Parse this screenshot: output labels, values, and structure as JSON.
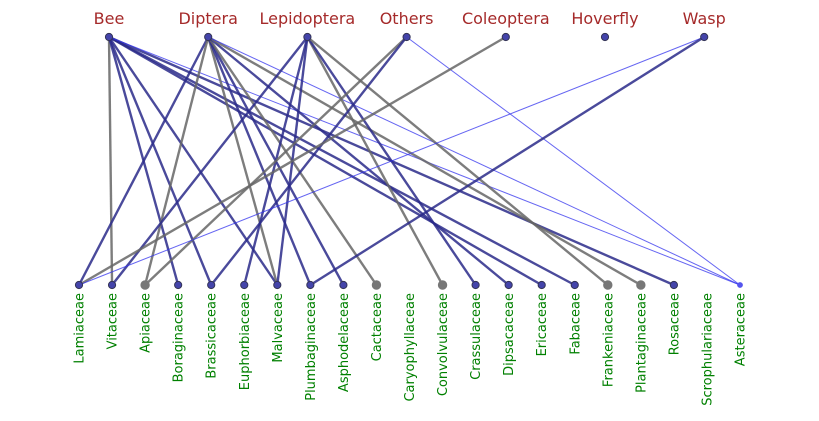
{
  "top_nodes": [
    "Bee",
    "Diptera",
    "Lepidoptera",
    "Others",
    "Coleoptera",
    "Hoverfly",
    "Wasp"
  ],
  "bottom_nodes": [
    "Lamiaceae",
    "Vitaceae",
    "Apiaceae",
    "Boraginaceae",
    "Brassicaceae",
    "Euphorbiaceae",
    "Malvaceae",
    "Plumbaginaceae",
    "Asphodelaceae",
    "Cactaceae",
    "Caryophyllaceae",
    "Convolvulaceae",
    "Crassulaceae",
    "Dipsacaceae",
    "Ericaceae",
    "Fabaceae",
    "Frankeniaceae",
    "Plantaginaceae",
    "Rosaceae",
    "Scrophulariaceae",
    "Asteraceae"
  ],
  "colors": {
    "top_label": "#a52a2a",
    "bottom_label": "#008000",
    "dark_blue": "#2a2a8a",
    "gray": "#666666",
    "light_blue": "#3333ee",
    "node_blue": "#4444aa",
    "node_gray": "#777777",
    "node_light": "#5555ee"
  },
  "edges": [
    {
      "from": "Bee",
      "to": "Vitaceae",
      "style": "gray"
    },
    {
      "from": "Bee",
      "to": "Boraginaceae",
      "style": "dark"
    },
    {
      "from": "Bee",
      "to": "Brassicaceae",
      "style": "dark"
    },
    {
      "from": "Bee",
      "to": "Malvaceae",
      "style": "dark"
    },
    {
      "from": "Bee",
      "to": "Ericaceae",
      "style": "dark"
    },
    {
      "from": "Bee",
      "to": "Fabaceae",
      "style": "dark"
    },
    {
      "from": "Bee",
      "to": "Rosaceae",
      "style": "dark"
    },
    {
      "from": "Bee",
      "to": "Asteraceae",
      "style": "light"
    },
    {
      "from": "Diptera",
      "to": "Lamiaceae",
      "style": "dark"
    },
    {
      "from": "Diptera",
      "to": "Apiaceae",
      "style": "gray"
    },
    {
      "from": "Diptera",
      "to": "Malvaceae",
      "style": "gray"
    },
    {
      "from": "Diptera",
      "to": "Plumbaginaceae",
      "style": "dark"
    },
    {
      "from": "Diptera",
      "to": "Asphodelaceae",
      "style": "dark"
    },
    {
      "from": "Diptera",
      "to": "Cactaceae",
      "style": "gray"
    },
    {
      "from": "Diptera",
      "to": "Dipsacaceae",
      "style": "dark"
    },
    {
      "from": "Diptera",
      "to": "Plantaginaceae",
      "style": "gray"
    },
    {
      "from": "Diptera",
      "to": "Asteraceae",
      "style": "light"
    },
    {
      "from": "Lepidoptera",
      "to": "Vitaceae",
      "style": "dark"
    },
    {
      "from": "Lepidoptera",
      "to": "Euphorbiaceae",
      "style": "dark"
    },
    {
      "from": "Lepidoptera",
      "to": "Malvaceae",
      "style": "dark"
    },
    {
      "from": "Lepidoptera",
      "to": "Convolvulaceae",
      "style": "gray"
    },
    {
      "from": "Lepidoptera",
      "to": "Crassulaceae",
      "style": "dark"
    },
    {
      "from": "Lepidoptera",
      "to": "Frankeniaceae",
      "style": "gray"
    },
    {
      "from": "Others",
      "to": "Apiaceae",
      "style": "gray"
    },
    {
      "from": "Others",
      "to": "Brassicaceae",
      "style": "dark"
    },
    {
      "from": "Others",
      "to": "Asteraceae",
      "style": "light"
    },
    {
      "from": "Coleoptera",
      "to": "Lamiaceae",
      "style": "gray"
    },
    {
      "from": "Wasp",
      "to": "Lamiaceae",
      "style": "light"
    },
    {
      "from": "Wasp",
      "to": "Plumbaginaceae",
      "style": "dark"
    }
  ]
}
